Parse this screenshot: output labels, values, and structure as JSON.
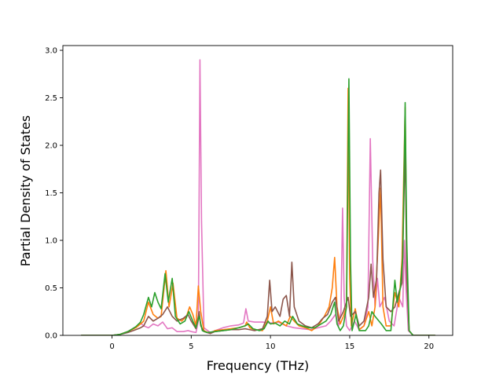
{
  "chart_data": {
    "type": "line",
    "title": "",
    "xlabel": "Frequency (THz)",
    "ylabel": "Partial Density of States",
    "xlim": [
      -3.1,
      21.5
    ],
    "ylim": [
      0,
      3.05
    ],
    "grid": false,
    "legend": "none",
    "xticks": [
      {
        "value": 0,
        "label": "0"
      },
      {
        "value": 5,
        "label": "5"
      },
      {
        "value": 10,
        "label": "10"
      },
      {
        "value": 15,
        "label": "15"
      },
      {
        "value": 20,
        "label": "20"
      }
    ],
    "yticks": [
      {
        "value": 0.0,
        "label": "0.0"
      },
      {
        "value": 0.5,
        "label": "0.5"
      },
      {
        "value": 1.0,
        "label": "1.0"
      },
      {
        "value": 1.5,
        "label": "1.5"
      },
      {
        "value": 2.0,
        "label": "2.0"
      },
      {
        "value": 2.5,
        "label": "2.5"
      },
      {
        "value": 3.0,
        "label": "3.0"
      }
    ],
    "series": [
      {
        "color": "#e377c2",
        "points": [
          [
            -1.95,
            0
          ],
          [
            -1,
            0
          ],
          [
            0,
            0
          ],
          [
            0.5,
            0.01
          ],
          [
            1,
            0.04
          ],
          [
            1.5,
            0.09
          ],
          [
            1.8,
            0.13
          ],
          [
            2,
            0.1
          ],
          [
            2.3,
            0.08
          ],
          [
            2.6,
            0.12
          ],
          [
            2.9,
            0.1
          ],
          [
            3.2,
            0.14
          ],
          [
            3.5,
            0.07
          ],
          [
            3.8,
            0.08
          ],
          [
            4.1,
            0.04
          ],
          [
            4.5,
            0.04
          ],
          [
            4.8,
            0.05
          ],
          [
            5,
            0.04
          ],
          [
            5.3,
            0.03
          ],
          [
            5.45,
            0.15
          ],
          [
            5.55,
            2.9
          ],
          [
            5.65,
            1.2
          ],
          [
            5.8,
            0.08
          ],
          [
            6.2,
            0.03
          ],
          [
            6.5,
            0.05
          ],
          [
            7,
            0.08
          ],
          [
            7.5,
            0.1
          ],
          [
            8,
            0.11
          ],
          [
            8.3,
            0.13
          ],
          [
            8.45,
            0.28
          ],
          [
            8.6,
            0.15
          ],
          [
            9,
            0.14
          ],
          [
            9.5,
            0.14
          ],
          [
            10,
            0.13
          ],
          [
            10.5,
            0.14
          ],
          [
            11,
            0.1
          ],
          [
            11.5,
            0.08
          ],
          [
            12,
            0.07
          ],
          [
            12.5,
            0.06
          ],
          [
            13,
            0.08
          ],
          [
            13.5,
            0.1
          ],
          [
            13.8,
            0.15
          ],
          [
            14.1,
            0.22
          ],
          [
            14.3,
            0.1
          ],
          [
            14.45,
            0.25
          ],
          [
            14.55,
            1.34
          ],
          [
            14.65,
            0.4
          ],
          [
            14.8,
            0.1
          ],
          [
            15,
            0.05
          ],
          [
            15.3,
            0.15
          ],
          [
            15.6,
            0.06
          ],
          [
            15.9,
            0.1
          ],
          [
            16.15,
            0.3
          ],
          [
            16.3,
            2.07
          ],
          [
            16.45,
            0.8
          ],
          [
            16.6,
            0.3
          ],
          [
            16.75,
            0.6
          ],
          [
            16.9,
            0.3
          ],
          [
            17.2,
            0.4
          ],
          [
            17.5,
            0.15
          ],
          [
            17.8,
            0.1
          ],
          [
            18.1,
            0.4
          ],
          [
            18.35,
            0.3
          ],
          [
            18.45,
            1.0
          ],
          [
            18.55,
            0.5
          ],
          [
            18.7,
            0.05
          ],
          [
            19,
            0
          ],
          [
            20.4,
            0
          ]
        ]
      },
      {
        "color": "#ff7f0e",
        "points": [
          [
            -1.95,
            0
          ],
          [
            -1,
            0
          ],
          [
            0,
            0
          ],
          [
            0.5,
            0.01
          ],
          [
            1,
            0.04
          ],
          [
            1.5,
            0.08
          ],
          [
            1.8,
            0.12
          ],
          [
            2,
            0.15
          ],
          [
            2.3,
            0.35
          ],
          [
            2.6,
            0.22
          ],
          [
            2.9,
            0.18
          ],
          [
            3.1,
            0.2
          ],
          [
            3.4,
            0.68
          ],
          [
            3.6,
            0.3
          ],
          [
            3.85,
            0.55
          ],
          [
            4.1,
            0.18
          ],
          [
            4.4,
            0.15
          ],
          [
            4.7,
            0.2
          ],
          [
            4.9,
            0.3
          ],
          [
            5.1,
            0.22
          ],
          [
            5.3,
            0.1
          ],
          [
            5.45,
            0.52
          ],
          [
            5.6,
            0.25
          ],
          [
            5.8,
            0.05
          ],
          [
            6.2,
            0.02
          ],
          [
            6.5,
            0.05
          ],
          [
            7,
            0.06
          ],
          [
            7.5,
            0.07
          ],
          [
            8,
            0.08
          ],
          [
            8.4,
            0.1
          ],
          [
            8.5,
            0.14
          ],
          [
            8.7,
            0.08
          ],
          [
            9,
            0.06
          ],
          [
            9.5,
            0.05
          ],
          [
            9.8,
            0.15
          ],
          [
            10.0,
            0.3
          ],
          [
            10.2,
            0.12
          ],
          [
            10.5,
            0.15
          ],
          [
            10.8,
            0.12
          ],
          [
            11,
            0.1
          ],
          [
            11.25,
            0.2
          ],
          [
            11.5,
            0.15
          ],
          [
            11.8,
            0.1
          ],
          [
            12.2,
            0.08
          ],
          [
            12.6,
            0.05
          ],
          [
            13,
            0.1
          ],
          [
            13.4,
            0.2
          ],
          [
            13.7,
            0.3
          ],
          [
            13.9,
            0.5
          ],
          [
            14.05,
            0.82
          ],
          [
            14.2,
            0.3
          ],
          [
            14.4,
            0.12
          ],
          [
            14.6,
            0.2
          ],
          [
            14.8,
            0.3
          ],
          [
            14.9,
            2.6
          ],
          [
            15.0,
            0.6
          ],
          [
            15.1,
            0.1
          ],
          [
            15.35,
            0.28
          ],
          [
            15.6,
            0.06
          ],
          [
            15.9,
            0.1
          ],
          [
            16.2,
            0.25
          ],
          [
            16.4,
            0.1
          ],
          [
            16.6,
            0.3
          ],
          [
            16.8,
            1.0
          ],
          [
            16.95,
            1.55
          ],
          [
            17.1,
            0.3
          ],
          [
            17.3,
            0.1
          ],
          [
            17.6,
            0.1
          ],
          [
            17.85,
            0.45
          ],
          [
            18.1,
            0.3
          ],
          [
            18.3,
            0.8
          ],
          [
            18.5,
            2.4
          ],
          [
            18.6,
            0.8
          ],
          [
            18.75,
            0.05
          ],
          [
            19,
            0
          ],
          [
            20.4,
            0
          ]
        ]
      },
      {
        "color": "#8c564b",
        "points": [
          [
            -1.95,
            0
          ],
          [
            -1,
            0
          ],
          [
            0,
            0
          ],
          [
            0.5,
            0.01
          ],
          [
            1,
            0.03
          ],
          [
            1.5,
            0.06
          ],
          [
            1.8,
            0.08
          ],
          [
            2,
            0.1
          ],
          [
            2.3,
            0.2
          ],
          [
            2.6,
            0.15
          ],
          [
            2.9,
            0.18
          ],
          [
            3.2,
            0.22
          ],
          [
            3.5,
            0.3
          ],
          [
            3.8,
            0.2
          ],
          [
            4.1,
            0.15
          ],
          [
            4.5,
            0.18
          ],
          [
            4.8,
            0.22
          ],
          [
            5.0,
            0.15
          ],
          [
            5.3,
            0.07
          ],
          [
            5.5,
            0.25
          ],
          [
            5.6,
            0.1
          ],
          [
            5.8,
            0.04
          ],
          [
            6.2,
            0.02
          ],
          [
            6.5,
            0.04
          ],
          [
            7,
            0.05
          ],
          [
            7.5,
            0.06
          ],
          [
            8,
            0.06
          ],
          [
            8.4,
            0.07
          ],
          [
            8.7,
            0.06
          ],
          [
            9,
            0.05
          ],
          [
            9.5,
            0.07
          ],
          [
            9.8,
            0.2
          ],
          [
            9.95,
            0.58
          ],
          [
            10.1,
            0.25
          ],
          [
            10.3,
            0.3
          ],
          [
            10.6,
            0.2
          ],
          [
            10.8,
            0.38
          ],
          [
            11.0,
            0.42
          ],
          [
            11.2,
            0.2
          ],
          [
            11.35,
            0.77
          ],
          [
            11.5,
            0.3
          ],
          [
            11.8,
            0.15
          ],
          [
            12.2,
            0.1
          ],
          [
            12.6,
            0.08
          ],
          [
            13,
            0.12
          ],
          [
            13.3,
            0.18
          ],
          [
            13.6,
            0.22
          ],
          [
            13.9,
            0.35
          ],
          [
            14.1,
            0.4
          ],
          [
            14.3,
            0.15
          ],
          [
            14.6,
            0.25
          ],
          [
            14.9,
            0.4
          ],
          [
            15.05,
            0.2
          ],
          [
            15.35,
            0.25
          ],
          [
            15.6,
            0.1
          ],
          [
            15.9,
            0.15
          ],
          [
            16.2,
            0.4
          ],
          [
            16.35,
            0.75
          ],
          [
            16.5,
            0.4
          ],
          [
            16.7,
            0.6
          ],
          [
            16.85,
            1.5
          ],
          [
            16.95,
            1.74
          ],
          [
            17.1,
            0.8
          ],
          [
            17.3,
            0.3
          ],
          [
            17.6,
            0.25
          ],
          [
            17.85,
            0.3
          ],
          [
            18.1,
            0.45
          ],
          [
            18.3,
            0.55
          ],
          [
            18.5,
            2.0
          ],
          [
            18.6,
            0.6
          ],
          [
            18.75,
            0.05
          ],
          [
            19,
            0
          ],
          [
            20.4,
            0
          ]
        ]
      },
      {
        "color": "#2ca02c",
        "points": [
          [
            -1.95,
            0
          ],
          [
            -1,
            0
          ],
          [
            0,
            0
          ],
          [
            0.5,
            0.01
          ],
          [
            1,
            0.04
          ],
          [
            1.5,
            0.09
          ],
          [
            1.8,
            0.14
          ],
          [
            2,
            0.22
          ],
          [
            2.3,
            0.4
          ],
          [
            2.5,
            0.3
          ],
          [
            2.7,
            0.45
          ],
          [
            2.9,
            0.35
          ],
          [
            3.1,
            0.28
          ],
          [
            3.35,
            0.65
          ],
          [
            3.55,
            0.35
          ],
          [
            3.8,
            0.6
          ],
          [
            4.0,
            0.2
          ],
          [
            4.3,
            0.12
          ],
          [
            4.6,
            0.15
          ],
          [
            4.85,
            0.25
          ],
          [
            5.1,
            0.15
          ],
          [
            5.3,
            0.08
          ],
          [
            5.5,
            0.2
          ],
          [
            5.7,
            0.05
          ],
          [
            6,
            0.03
          ],
          [
            6.5,
            0.04
          ],
          [
            7,
            0.05
          ],
          [
            7.5,
            0.06
          ],
          [
            8,
            0.08
          ],
          [
            8.4,
            0.1
          ],
          [
            8.6,
            0.12
          ],
          [
            8.9,
            0.07
          ],
          [
            9.3,
            0.05
          ],
          [
            9.6,
            0.07
          ],
          [
            9.85,
            0.15
          ],
          [
            10.0,
            0.12
          ],
          [
            10.3,
            0.13
          ],
          [
            10.6,
            0.1
          ],
          [
            10.9,
            0.15
          ],
          [
            11.2,
            0.12
          ],
          [
            11.4,
            0.2
          ],
          [
            11.7,
            0.12
          ],
          [
            12,
            0.1
          ],
          [
            12.4,
            0.08
          ],
          [
            12.8,
            0.08
          ],
          [
            13.2,
            0.12
          ],
          [
            13.5,
            0.15
          ],
          [
            13.8,
            0.22
          ],
          [
            14.05,
            0.35
          ],
          [
            14.2,
            0.12
          ],
          [
            14.4,
            0.05
          ],
          [
            14.6,
            0.1
          ],
          [
            14.8,
            0.3
          ],
          [
            14.95,
            2.7
          ],
          [
            15.05,
            0.8
          ],
          [
            15.15,
            0.05
          ],
          [
            15.4,
            0.22
          ],
          [
            15.6,
            0.05
          ],
          [
            16,
            0.05
          ],
          [
            16.2,
            0.1
          ],
          [
            16.4,
            0.25
          ],
          [
            16.6,
            0.2
          ],
          [
            16.85,
            0.15
          ],
          [
            17.0,
            0.12
          ],
          [
            17.3,
            0.05
          ],
          [
            17.6,
            0.05
          ],
          [
            17.85,
            0.58
          ],
          [
            18.0,
            0.35
          ],
          [
            18.2,
            0.5
          ],
          [
            18.35,
            0.82
          ],
          [
            18.5,
            2.45
          ],
          [
            18.6,
            1.0
          ],
          [
            18.75,
            0.05
          ],
          [
            19,
            0
          ],
          [
            20.4,
            0
          ]
        ]
      }
    ]
  }
}
